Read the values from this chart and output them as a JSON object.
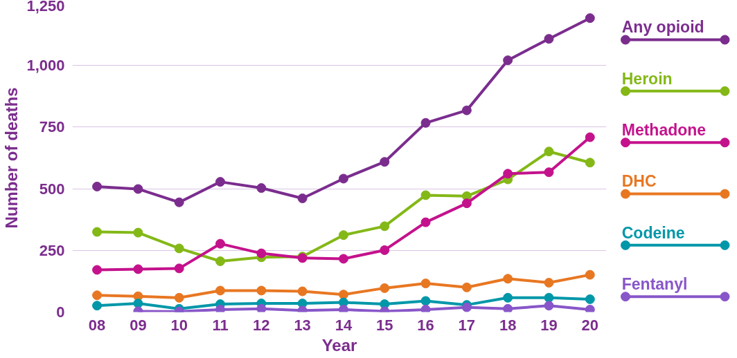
{
  "chart_data": {
    "type": "line",
    "xlabel": "Year",
    "ylabel": "Number of deaths",
    "categories": [
      "08",
      "09",
      "10",
      "11",
      "12",
      "13",
      "14",
      "15",
      "16",
      "17",
      "18",
      "19",
      "20"
    ],
    "ylim": [
      0,
      1250
    ],
    "yticks": [
      0,
      250,
      500,
      750,
      {
        "value": 1000,
        "label": "1,000"
      },
      {
        "value": 1250,
        "label": "1,250"
      }
    ],
    "grid": "y",
    "legend": "right",
    "marker": "circle",
    "line_style": "solid",
    "series": [
      {
        "name": "Any opioid",
        "color": "#7b2d8e",
        "values": [
          509,
          499,
          445,
          528,
          503,
          461,
          541,
          609,
          767,
          818,
          1021,
          1108,
          1192
        ]
      },
      {
        "name": "Heroin",
        "color": "#84b817",
        "values": [
          325,
          322,
          258,
          206,
          222,
          225,
          312,
          348,
          474,
          470,
          538,
          651,
          606
        ]
      },
      {
        "name": "Methadone",
        "color": "#c4128c",
        "values": [
          171,
          174,
          177,
          277,
          238,
          219,
          216,
          251,
          364,
          441,
          561,
          567,
          709
        ]
      },
      {
        "name": "DHC",
        "color": "#e87722",
        "values": [
          68,
          64,
          58,
          87,
          87,
          84,
          71,
          97,
          116,
          100,
          135,
          119,
          151
        ]
      },
      {
        "name": "Codeine",
        "color": "#0097a9",
        "values": [
          26,
          35,
          13,
          32,
          35,
          35,
          39,
          32,
          45,
          29,
          58,
          58,
          52
        ]
      },
      {
        "name": "Fentanyl",
        "color": "#8856c9",
        "values": [
          null,
          3,
          2,
          10,
          13,
          6,
          10,
          3,
          10,
          19,
          13,
          26,
          10
        ]
      }
    ]
  }
}
